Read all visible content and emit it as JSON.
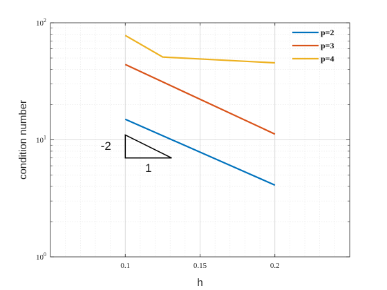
{
  "chart_data": {
    "type": "line",
    "x_scale": "linear",
    "y_scale": "log",
    "xlim": [
      0.05,
      0.25
    ],
    "ylim": [
      1,
      100
    ],
    "xlabel": "h",
    "ylabel": "condition number",
    "x_ticks": [
      {
        "value": 0.1,
        "label": "0.1"
      },
      {
        "value": 0.15,
        "label": "0.15"
      },
      {
        "value": 0.2,
        "label": "0.2"
      }
    ],
    "y_ticks": [
      {
        "value": 1,
        "base": "10",
        "exp": "0"
      },
      {
        "value": 10,
        "base": "10",
        "exp": "1"
      },
      {
        "value": 100,
        "base": "10",
        "exp": "2"
      }
    ],
    "grid": true,
    "minor_grid": true,
    "legend_position": "top-right",
    "series": [
      {
        "name": "p=2",
        "color": "#0072BD",
        "x": [
          0.1,
          0.2
        ],
        "y": [
          15,
          4.1
        ]
      },
      {
        "name": "p=3",
        "color": "#D95319",
        "x": [
          0.1,
          0.2
        ],
        "y": [
          44,
          11.2
        ]
      },
      {
        "name": "p=4",
        "color": "#EDB120",
        "x": [
          0.1,
          0.125,
          0.2
        ],
        "y": [
          78,
          51,
          45.5
        ]
      }
    ],
    "annotations": {
      "slope_triangle": {
        "vertices": [
          [
            0.1,
            11
          ],
          [
            0.1,
            7
          ],
          [
            0.131,
            7
          ]
        ],
        "vertical_label": "-2",
        "horizontal_label": "1"
      }
    }
  }
}
